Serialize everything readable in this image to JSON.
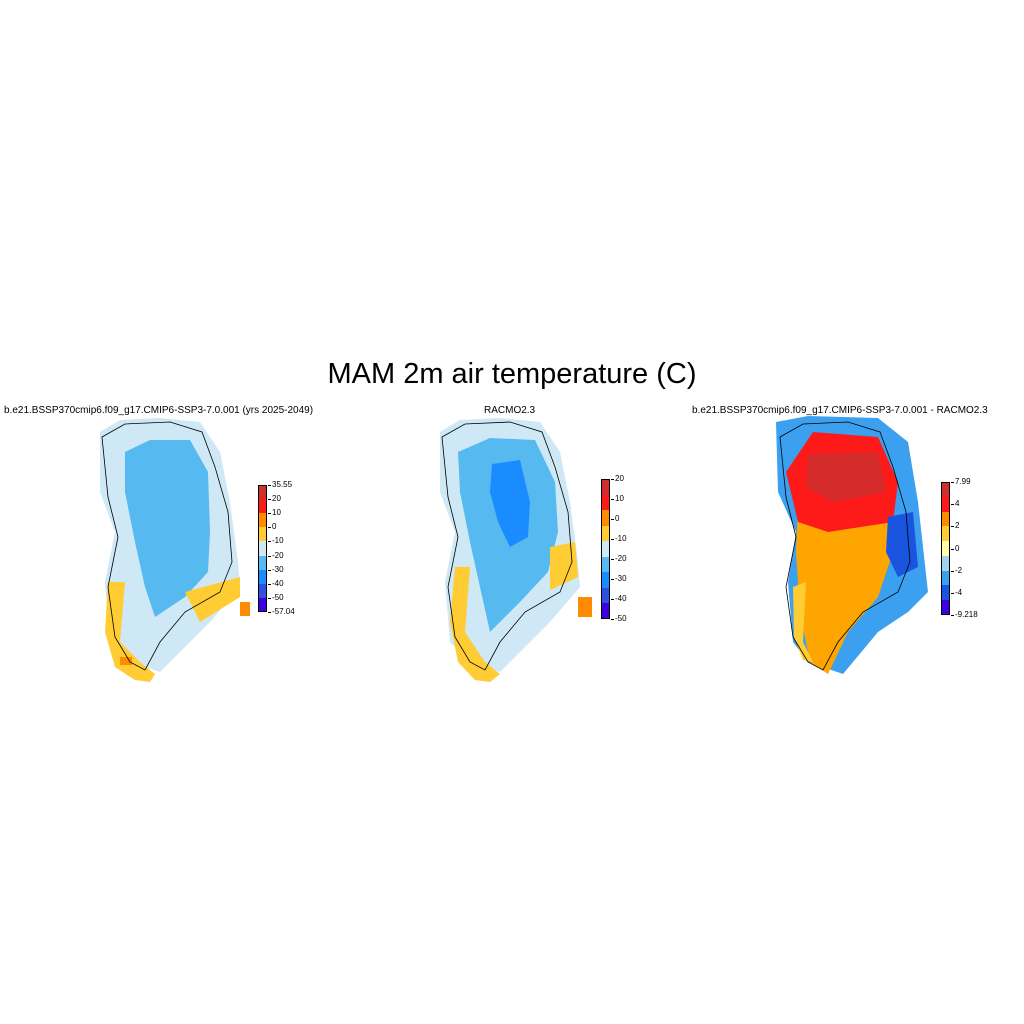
{
  "figure": {
    "title": "MAM 2m air temperature (C)"
  },
  "panels": [
    {
      "title": "b.e21.BSSP370cmip6.f09_g17.CMIP6-SSP3-7.0.001 (yrs 2025-2049)",
      "colorbar": {
        "colors": [
          "#cf2f2f",
          "#ff1a1a",
          "#ff8c00",
          "#ffcc33",
          "#cfe8f5",
          "#56b9f0",
          "#1a8cff",
          "#3050e0",
          "#3d00e0"
        ],
        "labels": [
          "35.55",
          "20",
          "10",
          "0",
          "-10",
          "-20",
          "-30",
          "-40",
          "-50",
          "-57.04"
        ]
      },
      "region_colors": {
        "ocean_ring": "#cfe8f5",
        "interior": "#56b9f0",
        "core": "#56b9f0",
        "coast_south": "#ffcc33",
        "coast_hot": "#ff8c00"
      }
    },
    {
      "title": "RACMO2.3",
      "colorbar": {
        "colors": [
          "#cf2f2f",
          "#ff1a1a",
          "#ff8c00",
          "#ffcc33",
          "#cfe8f5",
          "#56b9f0",
          "#1a8cff",
          "#3050e0",
          "#3d00e0"
        ],
        "labels": [
          "20",
          "10",
          "0",
          "-10",
          "-20",
          "-30",
          "-40",
          "-50"
        ]
      },
      "region_colors": {
        "ocean_ring": "#cfe8f5",
        "interior": "#56b9f0",
        "core": "#1a8cff",
        "coast_south": "#ffcc33",
        "coast_hot": "#ff8c00"
      }
    },
    {
      "title": "b.e21.BSSP370cmip6.f09_g17.CMIP6-SSP3-7.0.001 - RACMO2.3",
      "colorbar": {
        "colors": [
          "#cf2f2f",
          "#ff1a1a",
          "#ff8c00",
          "#ffcc33",
          "#ffffaa",
          "#9fd4f0",
          "#3ca0f0",
          "#1a55e0",
          "#3d00e0"
        ],
        "labels": [
          "7.99",
          "4",
          "2",
          "0",
          "-2",
          "-4",
          "-9.218"
        ]
      },
      "region_colors": {
        "ocean_ring": "#3ca0f0",
        "interior": "#ffa500",
        "core": "#d42a2a",
        "north_band": "#ff1a1a",
        "coast_south": "#ffcc33",
        "east_cold": "#1a55e0"
      }
    }
  ]
}
